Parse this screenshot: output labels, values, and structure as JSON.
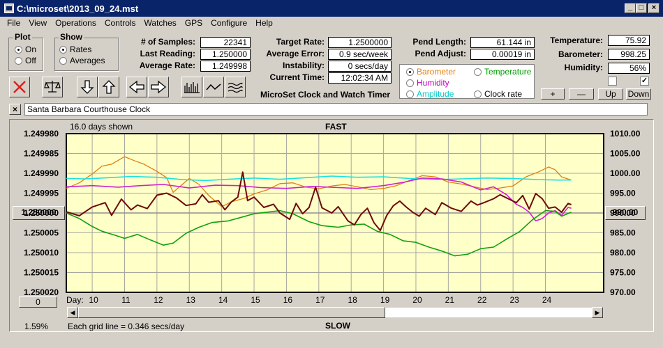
{
  "window": {
    "title": "C:\\microset\\2013_09_24.mst"
  },
  "menu": [
    "File",
    "View",
    "Operations",
    "Controls",
    "Watches",
    "GPS",
    "Configure",
    "Help"
  ],
  "plot_group": {
    "title": "Plot",
    "options": [
      {
        "label": "On",
        "selected": true
      },
      {
        "label": "Off",
        "selected": false
      }
    ]
  },
  "show_group": {
    "title": "Show",
    "options": [
      {
        "label": "Rates",
        "selected": true
      },
      {
        "label": "Averages",
        "selected": false
      }
    ]
  },
  "stats": {
    "samples_label": "# of Samples:",
    "samples": "22341",
    "last_label": "Last Reading:",
    "last": "1.250000",
    "avg_label": "Average Rate:",
    "avg": "1.249998"
  },
  "target": {
    "rate_label": "Target Rate:",
    "rate": "1.2500000",
    "err_label": "Average Error:",
    "err": "0.9 sec/week",
    "inst_label": "Instability:",
    "inst": "0 secs/day",
    "time_label": "Current Time:",
    "time": "12:02:34 AM"
  },
  "app_name": "MicroSet Clock and Watch Timer",
  "pend": {
    "len_label": "Pend Length:",
    "len": "61.144 in",
    "adj_label": "Pend Adjust:",
    "adj": "0.00019 in"
  },
  "sensor_select": {
    "options": [
      {
        "label": "Barometer",
        "color": "#e08010",
        "selected": true
      },
      {
        "label": "Temperature",
        "color": "#00a000",
        "selected": false
      },
      {
        "label": "Humidity",
        "color": "#c000c0",
        "selected": false
      },
      {
        "label": "Amplitude",
        "color": "#00c8c8",
        "selected": false
      },
      {
        "label": "Clock rate",
        "color": "#000000",
        "selected": false
      }
    ]
  },
  "env": {
    "temp_label": "Temperature:",
    "temp": "75.92",
    "baro_label": "Barometer:",
    "baro": "998.25",
    "hum_label": "Humidity:",
    "hum": "56%",
    "check1": false,
    "check2": true
  },
  "scale_buttons": {
    "plus": "+",
    "minus": "—",
    "up": "Up",
    "down": "Down"
  },
  "clock_name": {
    "value": "Santa Barbara Courthouse Clock"
  },
  "chart_labels": {
    "days_shown": "16.0 days shown",
    "top": "FAST",
    "bottom": "SLOW",
    "grid_info": "Each grid line = 0.346 secs/day",
    "percent": "1.59%",
    "left_value": "1.250000",
    "right_value": "990.00",
    "day_label": "Day:",
    "offset_button": "0"
  },
  "chart_data": {
    "type": "line",
    "x": {
      "label": "Day:",
      "range": [
        9.2,
        25.8
      ],
      "ticks": [
        10,
        11,
        12,
        13,
        14,
        15,
        16,
        17,
        18,
        19,
        20,
        21,
        22,
        23,
        24
      ]
    },
    "y_left": {
      "ticks": [
        "1.249980",
        "1.249985",
        "1.249990",
        "1.249995",
        "1.250000",
        "1.250005",
        "1.250010",
        "1.250015",
        "1.250020"
      ],
      "top": 1.24998,
      "bottom": 1.25002
    },
    "y_right": {
      "ticks": [
        "1010.00",
        "1005.00",
        "1000.00",
        "995.00",
        "990.00",
        "985.00",
        "980.00",
        "975.00",
        "970.00"
      ],
      "top": 1010,
      "bottom": 970
    },
    "grid": true,
    "series": [
      {
        "color": "#e08010",
        "width": 1.3,
        "points": [
          [
            9.2,
            996.2
          ],
          [
            9.6,
            997.6
          ],
          [
            10.0,
            999.8
          ],
          [
            10.3,
            1001.8
          ],
          [
            10.6,
            1002.3
          ],
          [
            11.0,
            1004.2
          ],
          [
            11.3,
            1003.2
          ],
          [
            11.6,
            1002.3
          ],
          [
            12.0,
            1000.5
          ],
          [
            12.3,
            998.9
          ],
          [
            12.5,
            995.2
          ],
          [
            12.7,
            996.6
          ],
          [
            13.0,
            998.7
          ],
          [
            13.3,
            997.2
          ],
          [
            13.6,
            994.4
          ],
          [
            14.0,
            991.6
          ],
          [
            14.3,
            992.8
          ],
          [
            14.7,
            993.7
          ],
          [
            15.0,
            994.8
          ],
          [
            15.4,
            995.8
          ],
          [
            15.8,
            997.4
          ],
          [
            16.2,
            997.6
          ],
          [
            16.6,
            996.5
          ],
          [
            17.0,
            996.1
          ],
          [
            17.4,
            996.8
          ],
          [
            17.8,
            997.2
          ],
          [
            18.2,
            996.6
          ],
          [
            18.6,
            995.9
          ],
          [
            19.0,
            996.2
          ],
          [
            19.4,
            996.9
          ],
          [
            19.8,
            998.2
          ],
          [
            20.2,
            999.4
          ],
          [
            20.6,
            999.1
          ],
          [
            21.0,
            997.8
          ],
          [
            21.4,
            997.3
          ],
          [
            21.8,
            996.6
          ],
          [
            22.2,
            995.9
          ],
          [
            22.6,
            996.3
          ],
          [
            23.0,
            996.8
          ],
          [
            23.4,
            999.1
          ],
          [
            23.8,
            1000.4
          ],
          [
            24.1,
            1001.6
          ],
          [
            24.3,
            1000.9
          ],
          [
            24.5,
            999.1
          ],
          [
            24.8,
            998.3
          ]
        ]
      },
      {
        "color": "#20e0e0",
        "width": 1.6,
        "points": [
          [
            9.2,
            998.7
          ],
          [
            9.8,
            998.6
          ],
          [
            10.5,
            998.9
          ],
          [
            11.2,
            999.2
          ],
          [
            12.0,
            999.0
          ],
          [
            12.8,
            998.4
          ],
          [
            13.5,
            998.2
          ],
          [
            14.2,
            998.5
          ],
          [
            15.0,
            998.8
          ],
          [
            15.8,
            998.5
          ],
          [
            16.6,
            998.9
          ],
          [
            17.4,
            999.3
          ],
          [
            18.2,
            999.0
          ],
          [
            19.0,
            999.1
          ],
          [
            19.8,
            998.7
          ],
          [
            20.6,
            998.4
          ],
          [
            21.4,
            998.6
          ],
          [
            22.2,
            998.8
          ],
          [
            23.0,
            998.7
          ],
          [
            23.8,
            998.4
          ],
          [
            24.4,
            998.3
          ],
          [
            24.8,
            998.3
          ]
        ]
      },
      {
        "color": "#d020d0",
        "width": 1.6,
        "points": [
          [
            9.2,
            996.6
          ],
          [
            10.0,
            996.9
          ],
          [
            10.8,
            996.5
          ],
          [
            11.5,
            996.9
          ],
          [
            12.2,
            997.2
          ],
          [
            13.0,
            996.3
          ],
          [
            13.8,
            997.0
          ],
          [
            14.5,
            996.9
          ],
          [
            15.2,
            996.4
          ],
          [
            16.0,
            996.2
          ],
          [
            16.8,
            996.7
          ],
          [
            17.6,
            996.4
          ],
          [
            18.2,
            996.2
          ],
          [
            19.0,
            996.9
          ],
          [
            19.6,
            997.7
          ],
          [
            20.2,
            998.8
          ],
          [
            20.8,
            998.6
          ],
          [
            21.4,
            997.8
          ],
          [
            22.0,
            995.8
          ],
          [
            22.4,
            996.6
          ],
          [
            22.8,
            994.6
          ],
          [
            23.1,
            992.2
          ],
          [
            23.3,
            991.4
          ],
          [
            23.5,
            990.2
          ],
          [
            23.7,
            988.0
          ],
          [
            23.9,
            988.6
          ],
          [
            24.1,
            990.0
          ],
          [
            24.3,
            990.6
          ],
          [
            24.5,
            989.4
          ],
          [
            24.7,
            991.4
          ],
          [
            24.8,
            991.2
          ]
        ]
      },
      {
        "color": "#10a010",
        "width": 1.6,
        "points": [
          [
            9.2,
            990.0
          ],
          [
            9.6,
            988.6
          ],
          [
            10.0,
            986.6
          ],
          [
            10.3,
            985.4
          ],
          [
            10.7,
            984.4
          ],
          [
            11.0,
            983.6
          ],
          [
            11.4,
            984.6
          ],
          [
            11.8,
            983.2
          ],
          [
            12.2,
            981.9
          ],
          [
            12.5,
            982.4
          ],
          [
            12.9,
            984.9
          ],
          [
            13.3,
            986.4
          ],
          [
            13.7,
            987.6
          ],
          [
            14.2,
            988.0
          ],
          [
            14.6,
            988.9
          ],
          [
            15.0,
            989.8
          ],
          [
            15.4,
            990.2
          ],
          [
            15.8,
            990.6
          ],
          [
            16.2,
            989.8
          ],
          [
            16.7,
            987.8
          ],
          [
            17.1,
            986.8
          ],
          [
            17.6,
            986.4
          ],
          [
            18.0,
            987.0
          ],
          [
            18.4,
            987.2
          ],
          [
            18.8,
            985.4
          ],
          [
            19.2,
            984.6
          ],
          [
            19.6,
            983.0
          ],
          [
            20.0,
            982.6
          ],
          [
            20.4,
            981.4
          ],
          [
            20.8,
            980.4
          ],
          [
            21.2,
            979.2
          ],
          [
            21.6,
            979.6
          ],
          [
            22.0,
            981.0
          ],
          [
            22.4,
            981.4
          ],
          [
            22.8,
            983.4
          ],
          [
            23.2,
            985.3
          ],
          [
            23.6,
            988.3
          ],
          [
            24.0,
            990.6
          ],
          [
            24.3,
            990.4
          ],
          [
            24.5,
            989.2
          ],
          [
            24.8,
            990.2
          ]
        ]
      },
      {
        "color": "#6e0a0a",
        "width": 2.0,
        "points": [
          [
            9.2,
            990.3
          ],
          [
            9.6,
            989.3
          ],
          [
            10.0,
            991.5
          ],
          [
            10.4,
            992.6
          ],
          [
            10.6,
            989.4
          ],
          [
            10.9,
            993.5
          ],
          [
            11.2,
            990.8
          ],
          [
            11.4,
            992.0
          ],
          [
            11.7,
            991.1
          ],
          [
            12.0,
            994.5
          ],
          [
            12.3,
            995.0
          ],
          [
            12.6,
            993.8
          ],
          [
            12.9,
            991.9
          ],
          [
            13.2,
            992.3
          ],
          [
            13.4,
            994.6
          ],
          [
            13.6,
            992.7
          ],
          [
            13.9,
            993.1
          ],
          [
            14.1,
            990.8
          ],
          [
            14.3,
            992.8
          ],
          [
            14.5,
            994.0
          ],
          [
            14.65,
            1000.3
          ],
          [
            14.8,
            993.1
          ],
          [
            15.0,
            994.0
          ],
          [
            15.3,
            991.4
          ],
          [
            15.6,
            992.2
          ],
          [
            15.8,
            990.0
          ],
          [
            16.1,
            988.4
          ],
          [
            16.3,
            992.4
          ],
          [
            16.5,
            989.8
          ],
          [
            16.7,
            991.4
          ],
          [
            16.9,
            996.5
          ],
          [
            17.1,
            991.3
          ],
          [
            17.4,
            990.0
          ],
          [
            17.6,
            991.6
          ],
          [
            17.9,
            988.0
          ],
          [
            18.1,
            987.0
          ],
          [
            18.3,
            989.6
          ],
          [
            18.5,
            991.2
          ],
          [
            18.7,
            987.6
          ],
          [
            18.9,
            985.6
          ],
          [
            19.1,
            989.4
          ],
          [
            19.3,
            991.8
          ],
          [
            19.5,
            993.0
          ],
          [
            19.7,
            991.5
          ],
          [
            19.9,
            990.2
          ],
          [
            20.1,
            989.2
          ],
          [
            20.3,
            991.2
          ],
          [
            20.6,
            989.6
          ],
          [
            20.8,
            992.6
          ],
          [
            21.1,
            991.2
          ],
          [
            21.4,
            990.4
          ],
          [
            21.7,
            993.0
          ],
          [
            21.9,
            992.0
          ],
          [
            22.1,
            992.6
          ],
          [
            22.4,
            993.6
          ],
          [
            22.6,
            994.6
          ],
          [
            22.9,
            993.4
          ],
          [
            23.1,
            992.6
          ],
          [
            23.3,
            994.4
          ],
          [
            23.5,
            991.0
          ],
          [
            23.7,
            994.9
          ],
          [
            23.9,
            993.6
          ],
          [
            24.1,
            991.2
          ],
          [
            24.3,
            991.5
          ],
          [
            24.5,
            990.2
          ],
          [
            24.7,
            992.4
          ],
          [
            24.8,
            992.1
          ]
        ]
      }
    ]
  }
}
